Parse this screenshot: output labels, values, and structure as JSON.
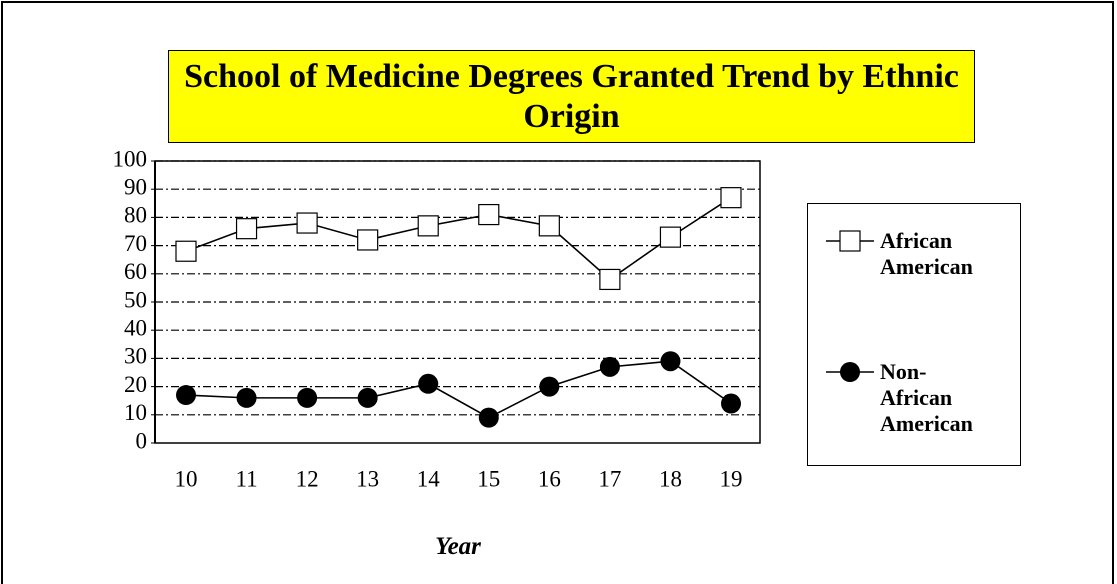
{
  "chart_data": {
    "type": "line",
    "title": "School of Medicine Degrees Granted Trend by Ethnic Origin",
    "x_label": "Year",
    "categories": [
      "10",
      "11",
      "12",
      "13",
      "14",
      "15",
      "16",
      "17",
      "18",
      "19"
    ],
    "series": [
      {
        "name": "African American",
        "color": "#000000",
        "marker": "square",
        "values": [
          68,
          76,
          78,
          72,
          77,
          81,
          77,
          58,
          73,
          87
        ]
      },
      {
        "name": "Non-African American",
        "color": "#000000",
        "marker": "circle",
        "values": [
          17,
          16,
          16,
          16,
          21,
          9,
          20,
          27,
          29,
          14
        ]
      }
    ],
    "ylim": [
      0,
      100
    ],
    "yticks": [
      0,
      10,
      20,
      30,
      40,
      50,
      60,
      70,
      80,
      90,
      100
    ],
    "grid": true,
    "legend": "right"
  }
}
